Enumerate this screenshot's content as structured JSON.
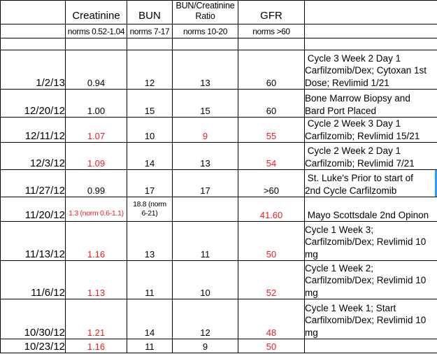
{
  "colors": {
    "text": "#000000",
    "alert": "#ed1c24",
    "grid": "#000000",
    "selection": "#2e9bf7",
    "background": "#ffffff"
  },
  "header": {
    "columns": [
      {
        "label": "",
        "norms": ""
      },
      {
        "label": "Creatinine",
        "norms": "norms 0.52-1.04"
      },
      {
        "label": "BUN",
        "norms": "norms 7-17"
      },
      {
        "label": "BUN/Creatinine\nRatio",
        "norms": "norms 10-20"
      },
      {
        "label": "GFR",
        "norms": "norms >60"
      },
      {
        "label": "",
        "norms": ""
      }
    ]
  },
  "rows": [
    {
      "date": "1/2/13",
      "creatinine": {
        "value": "0.94",
        "alert": false
      },
      "bun": {
        "value": "12",
        "alert": false
      },
      "ratio": {
        "value": "13",
        "alert": false
      },
      "gfr": {
        "value": "60",
        "alert": false
      },
      "notes": " Cycle 3 Week 2 Day 1\nCarfilzomib/Dex; Cytoxan 1st\nDose; Revlimid 1/21",
      "selected_edge": false
    },
    {
      "date": "12/20/12",
      "creatinine": {
        "value": "1.00",
        "alert": false
      },
      "bun": {
        "value": "15",
        "alert": false
      },
      "ratio": {
        "value": "15",
        "alert": false
      },
      "gfr": {
        "value": "60",
        "alert": false
      },
      "notes": "Bone Marrow Biopsy and\nBard Port Placed",
      "selected_edge": false
    },
    {
      "date": "12/11/12",
      "creatinine": {
        "value": "1.07",
        "alert": true
      },
      "bun": {
        "value": "10",
        "alert": false
      },
      "ratio": {
        "value": "9",
        "alert": true
      },
      "gfr": {
        "value": "55",
        "alert": true
      },
      "notes": " Cycle 2 Week 3 Day 1\nCarfilzomib; Revlimid 15/21",
      "selected_edge": false
    },
    {
      "date": "12/3/12",
      "creatinine": {
        "value": "1.09",
        "alert": true
      },
      "bun": {
        "value": "14",
        "alert": false
      },
      "ratio": {
        "value": "13",
        "alert": false
      },
      "gfr": {
        "value": "54",
        "alert": true
      },
      "notes": " Cycle 2 Week 2 Day 1\nCarfilzomib; Revlimid 7/21",
      "selected_edge": false
    },
    {
      "date": "11/27/12",
      "creatinine": {
        "value": "0.99",
        "alert": false
      },
      "bun": {
        "value": "17",
        "alert": false
      },
      "ratio": {
        "value": "17",
        "alert": false
      },
      "gfr": {
        "value": ">60",
        "alert": false
      },
      "notes": " St. Luke's Prior to start of\n2nd Cycle Carfilzomib",
      "selected_edge": true
    },
    {
      "date": "11/20/12",
      "creatinine": {
        "value": "1.3 (norm 0.6-1.1)",
        "alert": true
      },
      "bun": {
        "value": "18.8 (norm\n6-21)",
        "alert": false
      },
      "ratio": {
        "value": "",
        "alert": false
      },
      "gfr": {
        "value": "41.60",
        "alert": true
      },
      "notes": " Mayo Scottsdale 2nd Opinon",
      "selected_edge": false
    },
    {
      "date": "11/13/12",
      "creatinine": {
        "value": "1.16",
        "alert": true
      },
      "bun": {
        "value": "13",
        "alert": false
      },
      "ratio": {
        "value": "11",
        "alert": false
      },
      "gfr": {
        "value": "50",
        "alert": true
      },
      "notes": "Cycle 1 Week 3;\nCarfilzomib/Dex; Revlimid 10\nmg",
      "selected_edge": false
    },
    {
      "date": "11/6/12",
      "creatinine": {
        "value": "1.13",
        "alert": true
      },
      "bun": {
        "value": "11",
        "alert": false
      },
      "ratio": {
        "value": "10",
        "alert": false
      },
      "gfr": {
        "value": "52",
        "alert": true
      },
      "notes": "Cycle 1 Week 2;\nCarfilzomib/Dex; Revlimid 10\nmg",
      "selected_edge": false
    },
    {
      "date": "10/30/12",
      "creatinine": {
        "value": "1.21",
        "alert": true
      },
      "bun": {
        "value": "14",
        "alert": false
      },
      "ratio": {
        "value": "12",
        "alert": false
      },
      "gfr": {
        "value": "48",
        "alert": true
      },
      "notes": "Cycle 1 Week 1; Start\nCarfilxomib/Dex; Revlimid 10\nmg",
      "selected_edge": false
    },
    {
      "date": "10/23/12",
      "creatinine": {
        "value": "1.16",
        "alert": true
      },
      "bun": {
        "value": "11",
        "alert": false
      },
      "ratio": {
        "value": "9",
        "alert": false
      },
      "gfr": {
        "value": "50",
        "alert": true
      },
      "notes": "",
      "selected_edge": false
    }
  ]
}
